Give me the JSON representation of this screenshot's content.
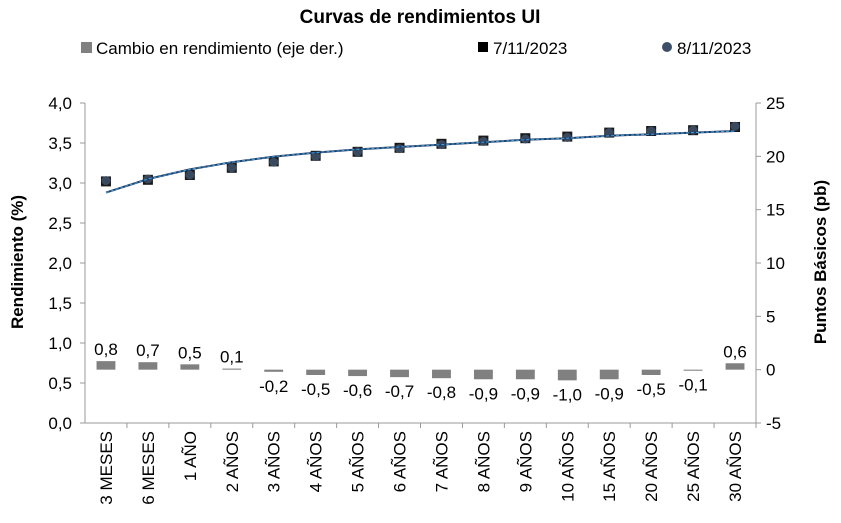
{
  "chart_data": {
    "type": "combo-bar-line",
    "title": "Curvas de rendimientos UI",
    "categories": [
      "3 MESES",
      "6 MESES",
      "1 AÑO",
      "2 AÑOS",
      "3 AÑOS",
      "4 AÑOS",
      "5 AÑOS",
      "6 AÑOS",
      "7 AÑOS",
      "8 AÑOS",
      "9 AÑOS",
      "10 AÑOS",
      "15 AÑOS",
      "20 AÑOS",
      "25 AÑOS",
      "30 AÑOS"
    ],
    "ylabel": "Rendimiento (%)",
    "y2label": "Puntos Básicos (pb)",
    "ylim": [
      0,
      4
    ],
    "y2lim": [
      -5,
      25
    ],
    "yticks": [
      "0,0",
      "0,5",
      "1,0",
      "1,5",
      "2,0",
      "2,5",
      "3,0",
      "3,5",
      "4,0"
    ],
    "y2ticks": [
      "-5",
      "0",
      "5",
      "10",
      "15",
      "20",
      "25"
    ],
    "legend_position": "top",
    "series": [
      {
        "name": "Cambio en rendimiento (eje der.)",
        "type": "bar",
        "axis": "right",
        "color": "#808080",
        "values": [
          0.8,
          0.7,
          0.5,
          0.1,
          -0.2,
          -0.5,
          -0.6,
          -0.7,
          -0.8,
          -0.9,
          -0.9,
          -1.0,
          -0.9,
          -0.5,
          -0.1,
          0.6
        ],
        "labels": [
          "0,8",
          "0,7",
          "0,5",
          "0,1",
          "-0,2",
          "-0,5",
          "-0,6",
          "-0,7",
          "-0,8",
          "-0,9",
          "-0,9",
          "-1,0",
          "-0,9",
          "-0,5",
          "-0,1",
          "0,6"
        ]
      },
      {
        "name": "7/11/2023",
        "type": "scatter",
        "marker": "square",
        "axis": "left",
        "color": "#1a1a1a",
        "values": [
          3.02,
          3.04,
          3.1,
          3.19,
          3.27,
          3.34,
          3.39,
          3.44,
          3.49,
          3.53,
          3.56,
          3.58,
          3.63,
          3.65,
          3.66,
          3.7
        ]
      },
      {
        "name": "8/11/2023",
        "type": "scatter",
        "marker": "circle",
        "axis": "left",
        "color": "#3d4f66",
        "values": [
          3.03,
          3.05,
          3.1,
          3.19,
          3.26,
          3.33,
          3.39,
          3.43,
          3.48,
          3.52,
          3.55,
          3.57,
          3.63,
          3.65,
          3.66,
          3.71
        ]
      }
    ],
    "fitted_curve": {
      "color": "#4aa3c8",
      "values": [
        2.88,
        3.05,
        3.17,
        3.26,
        3.33,
        3.38,
        3.42,
        3.45,
        3.48,
        3.51,
        3.54,
        3.56,
        3.59,
        3.61,
        3.63,
        3.65
      ]
    }
  }
}
